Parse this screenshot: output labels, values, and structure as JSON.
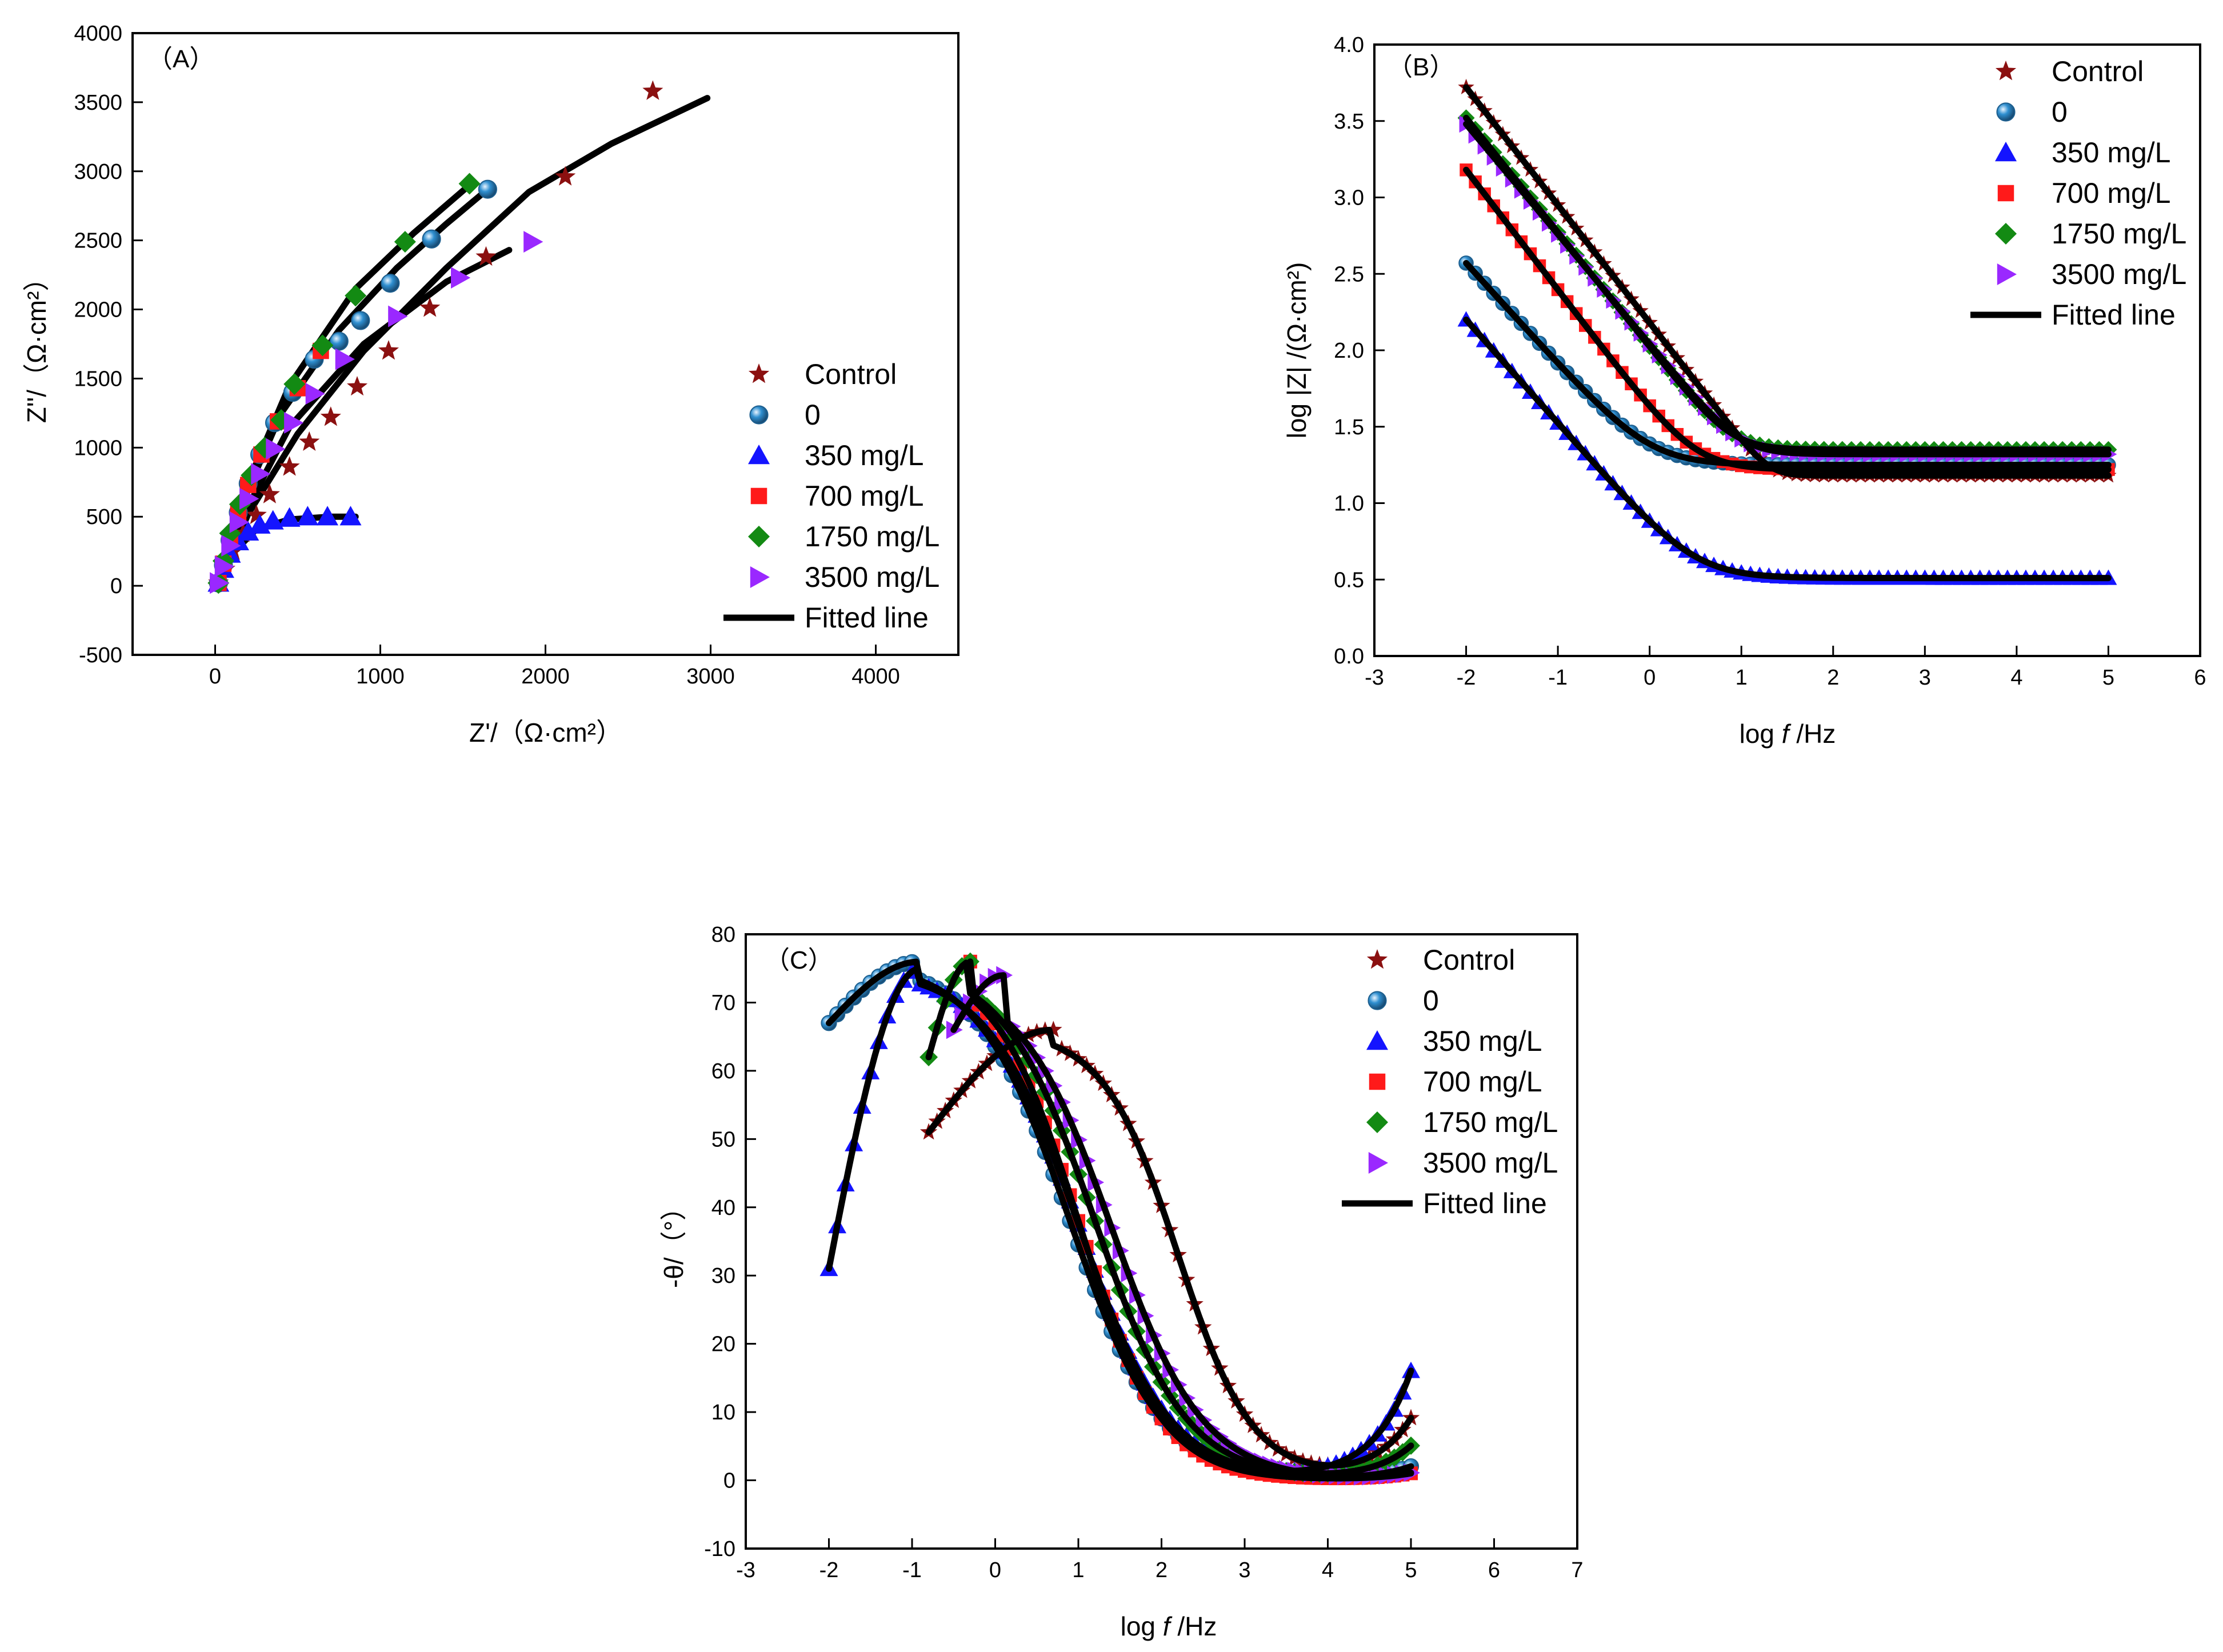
{
  "colors": {
    "control": "#8b1010",
    "zero": "#2f8fd0",
    "c350": "#1414ff",
    "c700": "#ff1a1a",
    "c1750": "#138a13",
    "c3500": "#9a28ff",
    "fit": "#000000"
  },
  "chart_data": [
    {
      "id": "A",
      "type": "scatter",
      "panel_label": "（A）",
      "xlabel": "Z'/（Ω·cm²）",
      "ylabel": "Z''/（Ω·cm²）",
      "xlim": [
        -500,
        4500
      ],
      "ylim": [
        -500,
        4000
      ],
      "xticks": [
        0,
        1000,
        2000,
        3000,
        4000
      ],
      "yticks": [
        -500,
        0,
        500,
        1000,
        1500,
        2000,
        2500,
        3000,
        3500,
        4000
      ],
      "legend_position": "right-middle",
      "legend": [
        "Control",
        "0",
        "350 mg/L",
        "700 mg/L",
        "1750 mg/L",
        "3500 mg/L",
        "Fitted line"
      ],
      "series": [
        {
          "name": "Control",
          "marker": "star",
          "x": [
            20,
            60,
            110,
            170,
            250,
            330,
            450,
            570,
            700,
            860,
            1050,
            1300,
            1640,
            2120,
            2650
          ],
          "y": [
            20,
            120,
            250,
            380,
            510,
            660,
            860,
            1040,
            1220,
            1440,
            1700,
            2010,
            2380,
            2960,
            3580
          ]
        },
        {
          "name": "0",
          "marker": "sphere",
          "x": [
            20,
            50,
            90,
            140,
            200,
            270,
            360,
            470,
            600,
            750,
            880,
            1060,
            1310,
            1650
          ],
          "y": [
            20,
            150,
            330,
            530,
            740,
            950,
            1180,
            1400,
            1640,
            1770,
            1920,
            2190,
            2510,
            2870
          ]
        },
        {
          "name": "350 mg/L",
          "marker": "triangle-up",
          "x": [
            20,
            50,
            90,
            140,
            200,
            270,
            350,
            450,
            560,
            680,
            820
          ],
          "y": [
            20,
            120,
            230,
            320,
            390,
            440,
            470,
            490,
            500,
            500,
            500
          ]
        },
        {
          "name": "700 mg/L",
          "marker": "square",
          "x": [
            20,
            50,
            90,
            140,
            200,
            280,
            380,
            500,
            640
          ],
          "y": [
            20,
            160,
            340,
            530,
            730,
            950,
            1190,
            1430,
            1700
          ]
        },
        {
          "name": "1750 mg/L",
          "marker": "diamond",
          "x": [
            20,
            50,
            90,
            150,
            220,
            300,
            400,
            480,
            650,
            850,
            1150,
            1540
          ],
          "y": [
            20,
            180,
            380,
            590,
            800,
            1000,
            1200,
            1460,
            1740,
            2100,
            2490,
            2910
          ]
        },
        {
          "name": "3500 mg/L",
          "marker": "triangle-right",
          "x": [
            20,
            50,
            90,
            140,
            200,
            270,
            360,
            470,
            600,
            780,
            1100,
            1480,
            1920
          ],
          "y": [
            20,
            140,
            290,
            460,
            630,
            810,
            990,
            1180,
            1390,
            1640,
            1950,
            2230,
            2490
          ]
        }
      ],
      "fits": [
        {
          "name": "fit-control",
          "x": [
            20,
            200,
            500,
            900,
            1400,
            1900,
            2400,
            2980
          ],
          "y": [
            20,
            520,
            1100,
            1700,
            2300,
            2850,
            3200,
            3530
          ]
        },
        {
          "name": "fit-0",
          "x": [
            20,
            150,
            400,
            750,
            1100,
            1400,
            1650
          ],
          "y": [
            20,
            560,
            1250,
            1850,
            2300,
            2620,
            2870
          ]
        },
        {
          "name": "fit-350",
          "x": [
            20,
            100,
            250,
            450,
            700,
            850
          ],
          "y": [
            20,
            230,
            410,
            480,
            500,
            500
          ]
        },
        {
          "name": "fit-1750",
          "x": [
            20,
            150,
            450,
            850,
            1200,
            1550
          ],
          "y": [
            20,
            610,
            1450,
            2150,
            2550,
            2910
          ]
        },
        {
          "name": "fit-3500",
          "x": [
            20,
            150,
            450,
            900,
            1400,
            1780
          ],
          "y": [
            20,
            460,
            1150,
            1750,
            2200,
            2430
          ]
        }
      ]
    },
    {
      "id": "B",
      "type": "scatter",
      "panel_label": "（B）",
      "xlabel_prefix": "log ",
      "xlabel_italic": "f",
      "xlabel_suffix": " /Hz",
      "ylabel": "log |Z| /(Ω·cm²)",
      "xlim": [
        -3,
        6
      ],
      "ylim": [
        0.0,
        4.0
      ],
      "xticks": [
        -3,
        -2,
        -1,
        0,
        1,
        2,
        3,
        4,
        5,
        6
      ],
      "yticks": [
        "0.0",
        "0.5",
        "1.0",
        "1.5",
        "2.0",
        "2.5",
        "3.0",
        "3.5",
        "4.0"
      ],
      "legend_position": "top-right",
      "legend": [
        "Control",
        "0",
        "350 mg/L",
        "700 mg/L",
        "1750 mg/L",
        "3500 mg/L",
        "Fitted line"
      ],
      "series": [
        {
          "name": "Control",
          "marker": "star",
          "plateau": 1.18,
          "start": 3.72,
          "knee": 1.3,
          "smooth": 0.12
        },
        {
          "name": "0",
          "marker": "sphere",
          "plateau": 1.25,
          "start": 2.57,
          "knee": 0.0,
          "smooth": 0.3
        },
        {
          "name": "350 mg/L",
          "marker": "triangle-up",
          "plateau": 0.51,
          "start": 2.2,
          "knee": 0.5,
          "smooth": 0.3
        },
        {
          "name": "700 mg/L",
          "marker": "square",
          "plateau": 1.22,
          "start": 3.18,
          "knee": 0.5,
          "smooth": 0.25
        },
        {
          "name": "1750 mg/L",
          "marker": "diamond",
          "plateau": 1.35,
          "start": 3.52,
          "knee": 0.9,
          "smooth": 0.2
        },
        {
          "name": "3500 mg/L",
          "marker": "triangle-right",
          "plateau": 1.32,
          "start": 3.48,
          "knee": 1.0,
          "smooth": 0.2
        }
      ]
    },
    {
      "id": "C",
      "type": "scatter",
      "panel_label": "（C）",
      "xlabel_prefix": "log ",
      "xlabel_italic": "f",
      "xlabel_suffix": " /Hz",
      "ylabel": "-θ/（°）",
      "xlim": [
        -3,
        7
      ],
      "ylim": [
        -10,
        80
      ],
      "xticks": [
        -3,
        -2,
        -1,
        0,
        1,
        2,
        3,
        4,
        5,
        6,
        7
      ],
      "yticks": [
        -10,
        0,
        10,
        20,
        30,
        40,
        50,
        60,
        70,
        80
      ],
      "legend_position": "top-right",
      "legend": [
        "Control",
        "0",
        "350 mg/L",
        "700 mg/L",
        "1750 mg/L",
        "3500 mg/L",
        "Fitted line"
      ],
      "series": [
        {
          "name": "Control",
          "marker": "star",
          "x0": -0.8,
          "y0": 51,
          "peak_x": 0.7,
          "peak": 66,
          "fall": 2.2,
          "width": 0.45,
          "end_y": 9
        },
        {
          "name": "0",
          "marker": "sphere",
          "x0": -2.0,
          "y0": 67,
          "peak_x": -0.9,
          "peak": 76,
          "fall": 0.9,
          "width": 0.55,
          "end_y": 2
        },
        {
          "name": "350 mg/L",
          "marker": "triangle-up",
          "x0": -2.0,
          "y0": 31,
          "peak_x": -0.9,
          "peak": 75,
          "fall": 1.0,
          "width": 0.55,
          "end_y": 16
        },
        {
          "name": "700 mg/L",
          "marker": "square",
          "x0": -0.3,
          "y0": 76,
          "peak_x": -0.3,
          "peak": 76,
          "fall": 1.0,
          "width": 0.5,
          "end_y": 1
        },
        {
          "name": "1750 mg/L",
          "marker": "diamond",
          "x0": -0.8,
          "y0": 62,
          "peak_x": -0.3,
          "peak": 76,
          "fall": 1.2,
          "width": 0.55,
          "end_y": 5
        },
        {
          "name": "3500 mg/L",
          "marker": "triangle-right",
          "x0": -0.5,
          "y0": 66,
          "peak_x": 0.1,
          "peak": 74,
          "fall": 1.4,
          "width": 0.55,
          "end_y": 1
        }
      ]
    }
  ]
}
